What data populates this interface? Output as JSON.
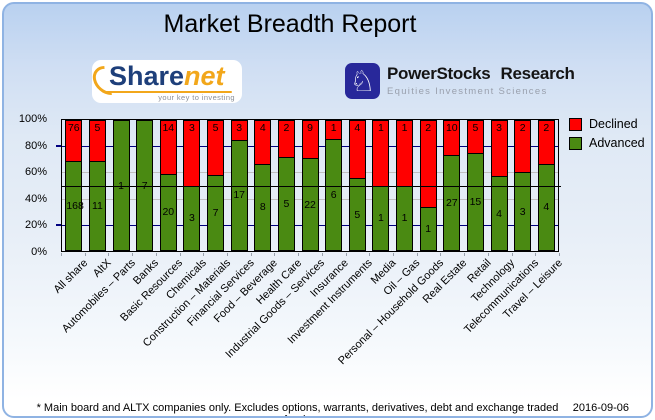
{
  "header": {
    "title": "Market Breadth Report"
  },
  "logos": {
    "sharenet": {
      "text_primary": "Share",
      "text_secondary": "net",
      "tagline": "your key to investing"
    },
    "powerstocks": {
      "name_word1": "PowerStocks",
      "name_word2": "Research",
      "tagline": "Equities Investment Sciences",
      "knight_icon": "white-chess-knight"
    }
  },
  "chart_data": {
    "type": "bar",
    "stacked": true,
    "normalized": "percent",
    "title": "Market Breadth Report",
    "categories": [
      "All share",
      "AltX",
      "Automobiles – Parts",
      "Banks",
      "Basic Resources",
      "Chemicals",
      "Construction – Materials",
      "Financial Services",
      "Food – Beverage",
      "Health Care",
      "Industrial Goods – Services",
      "Insurance",
      "Investment Instruments",
      "Media",
      "Oil – Gas",
      "Personal – Household Goods",
      "Real Estate",
      "Retail",
      "Technology",
      "Telecommunications",
      "Travel – Leisure"
    ],
    "series": [
      {
        "name": "Declined",
        "color": "#ff0000",
        "values": [
          76,
          5,
          0,
          0,
          14,
          3,
          5,
          3,
          4,
          2,
          9,
          1,
          4,
          1,
          1,
          2,
          10,
          5,
          3,
          2,
          2
        ]
      },
      {
        "name": "Advanced",
        "color": "#4a8a12",
        "values": [
          168,
          11,
          1,
          7,
          20,
          3,
          7,
          17,
          8,
          5,
          22,
          6,
          5,
          1,
          1,
          1,
          27,
          15,
          4,
          3,
          4
        ]
      }
    ],
    "y_ticks": [
      "100%",
      "80%",
      "60%",
      "40%",
      "20%",
      "0%"
    ],
    "ylim": [
      0,
      100
    ],
    "legend_position": "right-top",
    "value_labels": "shown-inside-segments",
    "reference_line_pct": 50,
    "gridlines": [
      {
        "pct": 80,
        "color": "#000080"
      },
      {
        "pct": 60,
        "color": "#c0c0c0"
      },
      {
        "pct": 40,
        "color": "#c0c0c0"
      },
      {
        "pct": 20,
        "color": "#000080"
      }
    ]
  },
  "footer": {
    "note": "* Main board and ALTX companies only. Excludes options, warrants, derivatives, debt and exchange traded funds",
    "date": "2016-09-06"
  },
  "colors": {
    "declined": "#ff0000",
    "advanced": "#4a8a12",
    "grid_navy": "#000080",
    "grid_gray": "#c0c0c0",
    "reference_line": "#000000",
    "card_border": "#8fb3e3",
    "card_top": "#b9d1f0",
    "card_bottom": "#ffffff",
    "sharenet_navy": "#1e3f7a",
    "sharenet_orange": "#f2a71b",
    "powerstocks_navy": "#28289a"
  }
}
